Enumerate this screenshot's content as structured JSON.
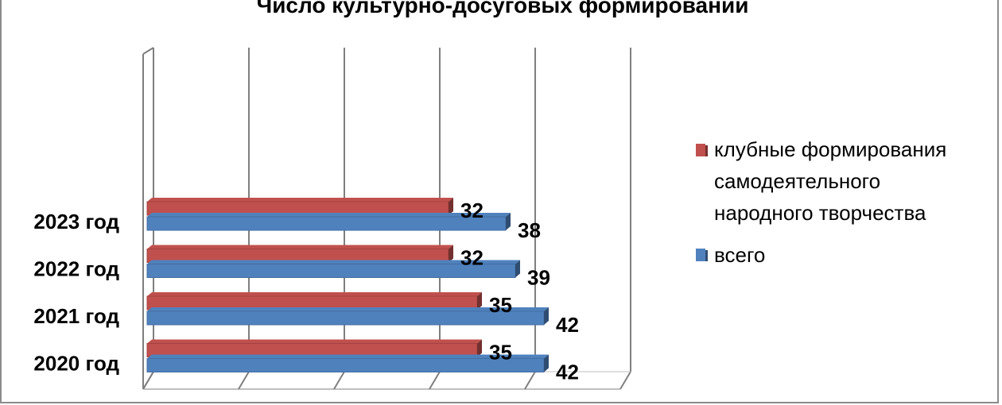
{
  "chart_data": {
    "type": "bar",
    "orientation": "horizontal",
    "title": "Число культурно-досуговых формирований",
    "categories": [
      "2023 год",
      "2022 год",
      "2021 год",
      "2020 год"
    ],
    "series": [
      {
        "name": "клубные формирования самодеятельного народного творчества",
        "values": [
          32,
          32,
          35,
          35
        ],
        "color": "#c0504d"
      },
      {
        "name": "всего",
        "values": [
          38,
          39,
          42,
          42
        ],
        "color": "#4f81bd"
      }
    ],
    "legend_lines": [
      "клубные формирования",
      "самодеятельного",
      "народного творчества"
    ],
    "xlim": [
      0,
      50
    ],
    "grid": true,
    "legend_position": "right"
  }
}
